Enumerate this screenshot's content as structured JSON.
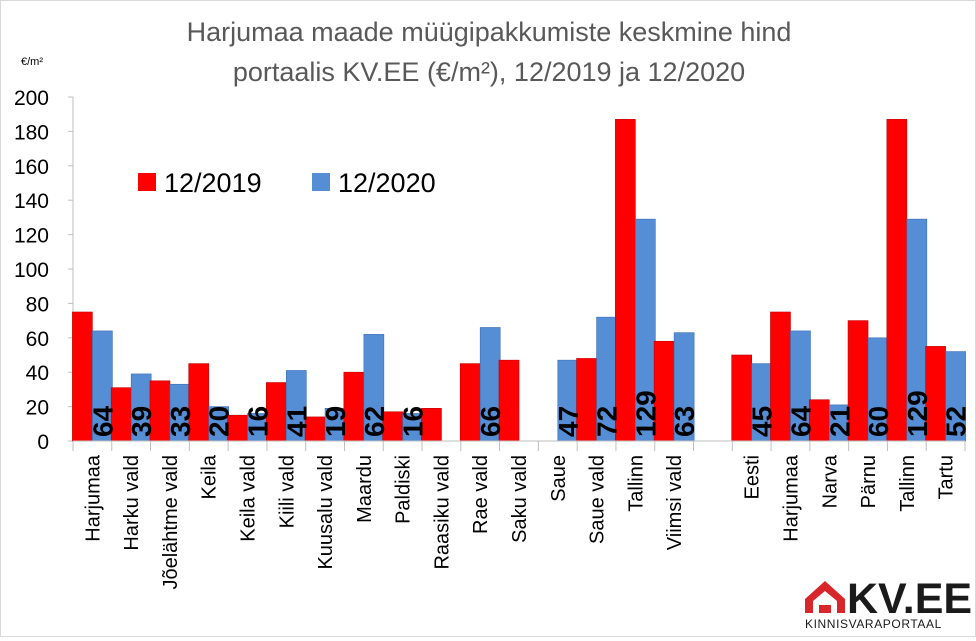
{
  "chart_data": {
    "type": "bar",
    "title_lines": [
      "Harjumaa maade müügipakkumiste keskmine hind",
      "portaalis KV.EE (€/m²), 12/2019 ja 12/2020"
    ],
    "ylabel": "€/m²",
    "ylim": [
      0,
      200
    ],
    "yticks": [
      0,
      20,
      40,
      60,
      80,
      100,
      120,
      140,
      160,
      180,
      200
    ],
    "grid": false,
    "legend_position": "upper-left",
    "categories": [
      "Harjumaa",
      "Harku vald",
      "Jõelähtme vald",
      "Keila",
      "Keila vald",
      "Kiili vald",
      "Kuusalu vald",
      "Maardu",
      "Paldiski",
      "Raasiku vald",
      "Rae vald",
      "Saku vald",
      "Saue",
      "Saue vald",
      "Tallinn",
      "Viimsi vald",
      "",
      "Eesti",
      "Harjumaa",
      "Narva",
      "Pärnu",
      "Tallinn",
      "Tartu"
    ],
    "series": [
      {
        "name": "12/2019",
        "color": "#ff0000",
        "values": [
          75,
          31,
          35,
          45,
          15,
          34,
          14,
          40,
          17,
          19,
          45,
          47,
          null,
          48,
          187,
          58,
          null,
          50,
          75,
          24,
          70,
          187,
          55
        ],
        "data_labels": [
          "",
          "",
          "",
          "",
          "",
          "",
          "",
          "",
          "",
          "",
          "",
          "",
          "",
          "",
          "",
          "",
          "",
          "",
          "",
          "",
          "",
          "",
          ""
        ]
      },
      {
        "name": "12/2020",
        "color": "#558ed5",
        "values": [
          64,
          39,
          33,
          20,
          16,
          41,
          19,
          62,
          16,
          null,
          66,
          null,
          47,
          72,
          129,
          63,
          null,
          45,
          64,
          21,
          60,
          129,
          52
        ],
        "data_labels": [
          "64",
          "39",
          "33",
          "20",
          "16",
          "41",
          "19",
          "62",
          "16",
          "",
          "66",
          "",
          "47",
          "72",
          "129",
          "63",
          "",
          "45",
          "64",
          "21",
          "60",
          "129",
          "52"
        ]
      }
    ]
  },
  "logo": {
    "name": "KV.EE",
    "tagline": "KINNISVARAPORTAAL",
    "house_icon": "house-icon",
    "color": "#d9262b"
  }
}
